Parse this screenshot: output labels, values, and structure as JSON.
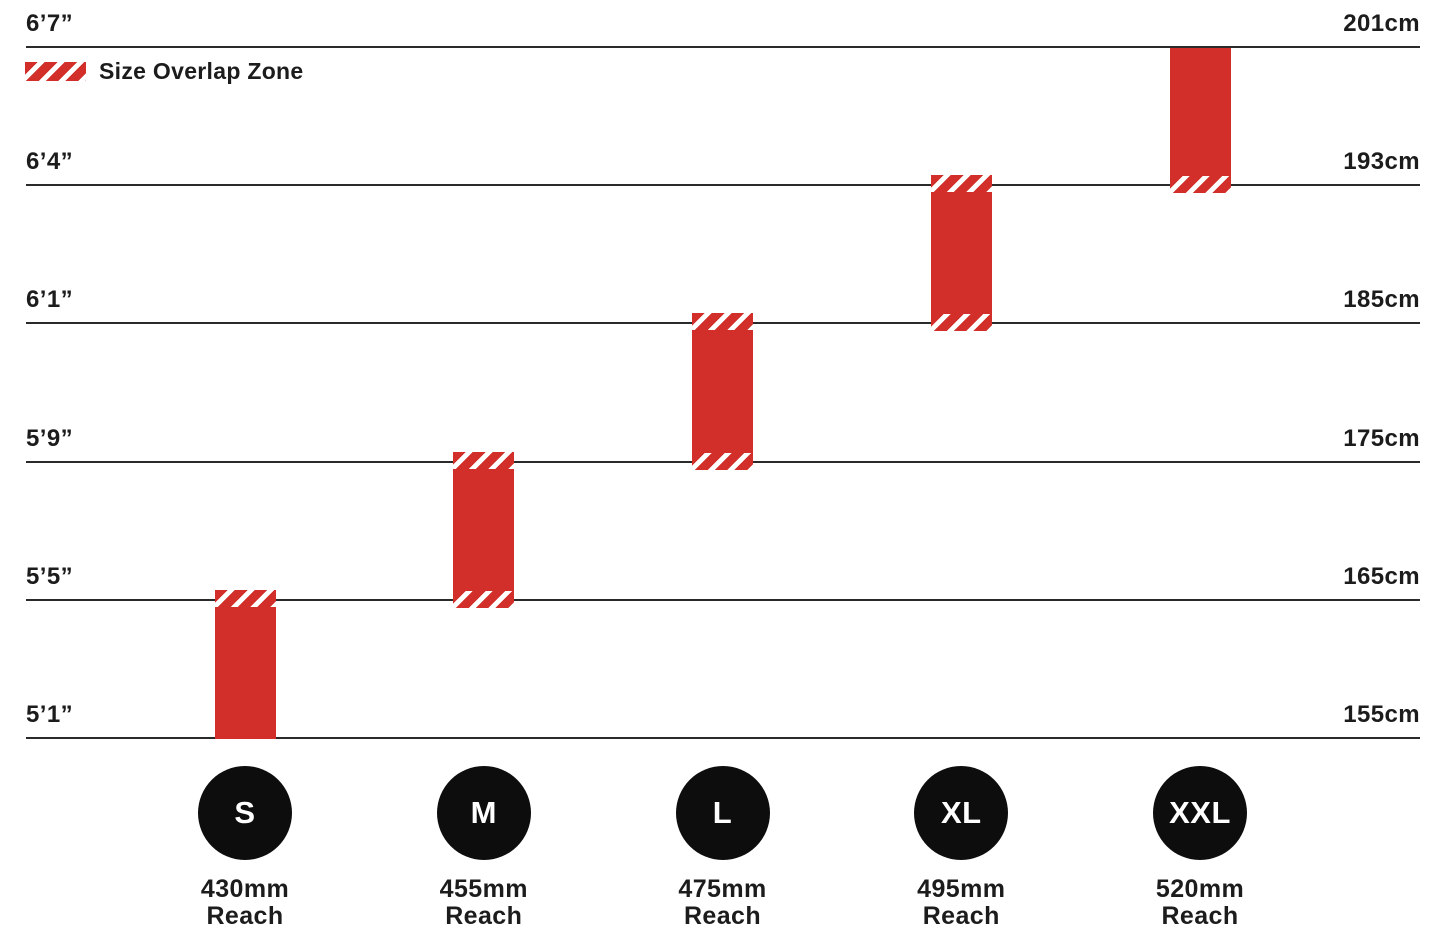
{
  "colors": {
    "bar_red": "#d22f2a",
    "ink": "#1c1c1c",
    "line": "#2a2a2a",
    "circle_black": "#0d0d0d",
    "background": "#ffffff"
  },
  "chart_data": {
    "type": "bar",
    "subtype": "vertical-range-bars-size-guide",
    "title": "",
    "legend": {
      "label": "Size Overlap Zone",
      "swatch": "red-white-diagonal-hatch",
      "position": "top-left"
    },
    "y_axis_left_unit": "feet-inches",
    "y_axis_right_unit": "centimeters",
    "gridlines": [
      {
        "left_label": "6’7”",
        "right_label": "201cm"
      },
      {
        "left_label": "6’4”",
        "right_label": "193cm"
      },
      {
        "left_label": "6’1”",
        "right_label": "185cm"
      },
      {
        "left_label": "5’9”",
        "right_label": "175cm"
      },
      {
        "left_label": "5’5”",
        "right_label": "165cm"
      },
      {
        "left_label": "5’1”",
        "right_label": "155cm"
      }
    ],
    "sizes": [
      {
        "label": "S",
        "reach_value": "430mm",
        "reach_word": "Reach",
        "height_range": "5’1”–5’5” (155–165cm)",
        "top_line": 4,
        "bottom_line": 5,
        "overlap_top": true,
        "overlap_bottom": false
      },
      {
        "label": "M",
        "reach_value": "455mm",
        "reach_word": "Reach",
        "height_range": "5’5”–5’9” (165–175cm)",
        "top_line": 3,
        "bottom_line": 4,
        "overlap_top": true,
        "overlap_bottom": true
      },
      {
        "label": "L",
        "reach_value": "475mm",
        "reach_word": "Reach",
        "height_range": "5’9”–6’1” (175–185cm)",
        "top_line": 2,
        "bottom_line": 3,
        "overlap_top": true,
        "overlap_bottom": true
      },
      {
        "label": "XL",
        "reach_value": "495mm",
        "reach_word": "Reach",
        "height_range": "6’1”–6’4” (185–193cm)",
        "top_line": 1,
        "bottom_line": 2,
        "overlap_top": true,
        "overlap_bottom": true
      },
      {
        "label": "XXL",
        "reach_value": "520mm",
        "reach_word": "Reach",
        "height_range": "6’4”–6’7” (193–201cm)",
        "top_line": 0,
        "bottom_line": 1,
        "overlap_top": false,
        "overlap_bottom": true
      }
    ]
  }
}
